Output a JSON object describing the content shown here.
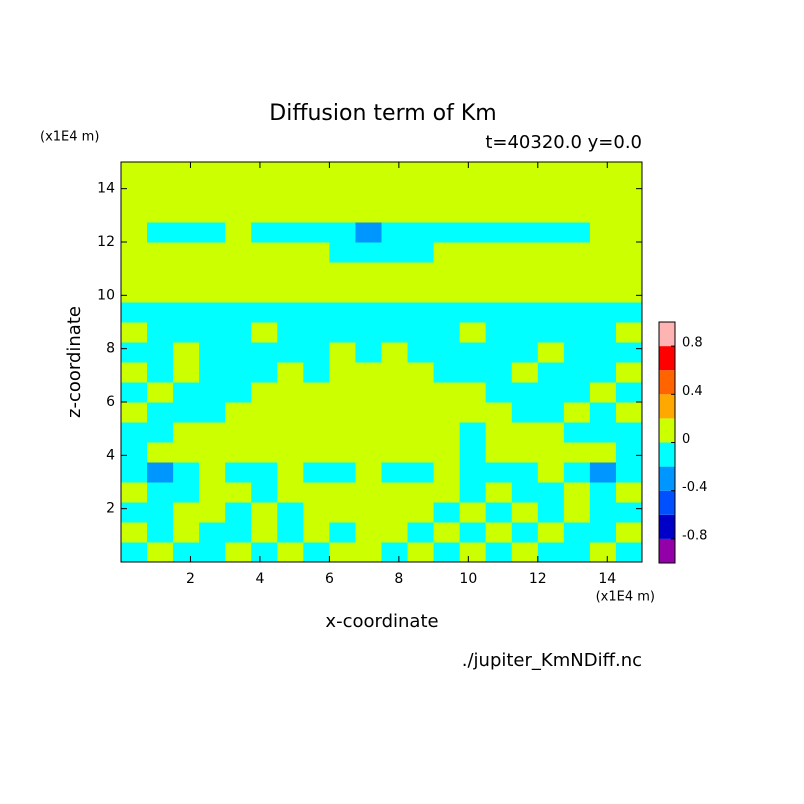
{
  "chart_data": {
    "type": "contour",
    "title": "Diffusion term of Km",
    "subtitle": "t=40320.0 y=0.0",
    "x_label": "x-coordinate",
    "y_label": "z-coordinate",
    "x_unit": "(x1E4 m)",
    "y_unit": "(x1E4 m)",
    "source": "./jupiter_KmNDiff.nc",
    "xlim": [
      0,
      15
    ],
    "ylim": [
      0,
      15
    ],
    "xticks": [
      2,
      4,
      6,
      8,
      10,
      12,
      14
    ],
    "yticks": [
      2,
      4,
      6,
      8,
      10,
      12,
      14
    ],
    "levels": [
      -1,
      -0.8,
      -0.6,
      -0.4,
      -0.2,
      0,
      0.2,
      0.4,
      0.6,
      0.8,
      1
    ],
    "colors": [
      "#9400a8",
      "#0000c8",
      "#0050ff",
      "#0096ff",
      "#00ffff",
      "#ccff00",
      "#ffa800",
      "#ff6400",
      "#ff0000",
      "#ffb4b4"
    ],
    "colorbar_ticks": [
      -0.8,
      -0.4,
      0,
      0.4,
      0.8
    ],
    "z": [
      [
        -0.1,
        0.1,
        -0.1,
        -0.1,
        0.1,
        -0.1,
        0.1,
        -0.1,
        0.1,
        0.1,
        -0.1,
        0.1,
        -0.1,
        0.1,
        -0.1,
        0.1,
        -0.1,
        -0.1,
        0.1,
        -0.1
      ],
      [
        0.1,
        -0.1,
        0.1,
        -0.1,
        -0.1,
        0.1,
        -0.1,
        0.1,
        -0.1,
        0.1,
        0.1,
        -0.1,
        0.1,
        -0.1,
        0.1,
        -0.1,
        0.1,
        -0.1,
        -0.1,
        0.1
      ],
      [
        -0.1,
        -0.1,
        0.1,
        0.1,
        -0.1,
        0.1,
        -0.1,
        0.1,
        0.1,
        0.1,
        0.1,
        0.1,
        -0.1,
        0.1,
        -0.1,
        0.1,
        -0.1,
        0.1,
        -0.1,
        -0.1
      ],
      [
        0.1,
        -0.1,
        -0.1,
        0.1,
        0.1,
        -0.1,
        0.1,
        0.1,
        0.1,
        0.1,
        0.1,
        0.1,
        0.1,
        -0.1,
        0.1,
        -0.1,
        -0.1,
        0.1,
        -0.1,
        0.1
      ],
      [
        -0.1,
        -0.3,
        -0.1,
        0.1,
        -0.1,
        -0.1,
        0.1,
        -0.1,
        -0.1,
        0.1,
        -0.1,
        -0.1,
        0.1,
        -0.1,
        -0.1,
        -0.1,
        0.1,
        -0.1,
        -0.3,
        -0.1
      ],
      [
        -0.1,
        0.1,
        0.1,
        0.1,
        0.1,
        0.1,
        0.1,
        0.1,
        0.1,
        0.1,
        0.1,
        0.1,
        0.1,
        -0.1,
        0.1,
        0.1,
        0.1,
        0.1,
        0.1,
        -0.1
      ],
      [
        -0.1,
        -0.1,
        0.1,
        0.1,
        0.1,
        0.1,
        0.1,
        0.1,
        0.1,
        0.1,
        0.1,
        0.1,
        0.1,
        -0.1,
        0.1,
        0.1,
        0.1,
        -0.1,
        -0.1,
        -0.1
      ],
      [
        0.1,
        -0.1,
        -0.1,
        -0.1,
        0.1,
        0.1,
        0.1,
        0.1,
        0.1,
        0.1,
        0.1,
        0.1,
        0.1,
        0.1,
        0.1,
        -0.1,
        -0.1,
        0.1,
        -0.1,
        0.1
      ],
      [
        -0.1,
        0.1,
        -0.1,
        -0.1,
        -0.1,
        0.1,
        0.1,
        0.1,
        0.1,
        0.1,
        0.1,
        0.1,
        0.1,
        0.1,
        -0.1,
        -0.1,
        -0.1,
        -0.1,
        0.1,
        -0.1
      ],
      [
        0.1,
        -0.1,
        0.1,
        -0.1,
        -0.1,
        -0.1,
        0.1,
        -0.1,
        0.1,
        0.1,
        0.1,
        0.1,
        -0.1,
        -0.1,
        -0.1,
        0.1,
        -0.1,
        -0.1,
        -0.1,
        0.1
      ],
      [
        -0.1,
        -0.1,
        0.1,
        -0.1,
        -0.1,
        -0.1,
        -0.1,
        -0.1,
        0.1,
        -0.1,
        0.1,
        -0.1,
        -0.1,
        -0.1,
        -0.1,
        -0.1,
        0.1,
        -0.1,
        -0.1,
        -0.1
      ],
      [
        0.1,
        -0.1,
        -0.1,
        -0.1,
        -0.1,
        0.1,
        -0.1,
        -0.1,
        -0.1,
        -0.1,
        -0.1,
        -0.1,
        -0.1,
        0.1,
        -0.1,
        -0.1,
        -0.1,
        -0.1,
        -0.1,
        0.1
      ],
      [
        -0.1,
        -0.1,
        -0.1,
        -0.1,
        -0.1,
        -0.1,
        -0.1,
        -0.1,
        -0.1,
        -0.1,
        -0.1,
        -0.1,
        -0.1,
        -0.1,
        -0.1,
        -0.1,
        -0.1,
        -0.1,
        -0.1,
        -0.1
      ],
      [
        0.1,
        0.1,
        0.1,
        0.1,
        0.1,
        0.1,
        0.1,
        0.1,
        0.1,
        0.1,
        0.1,
        0.1,
        0.1,
        0.1,
        0.1,
        0.1,
        0.1,
        0.1,
        0.1,
        0.1
      ],
      [
        0.1,
        0.1,
        0.1,
        0.1,
        0.1,
        0.1,
        0.1,
        0.1,
        0.1,
        0.1,
        0.1,
        0.1,
        0.1,
        0.1,
        0.1,
        0.1,
        0.1,
        0.1,
        0.1,
        0.1
      ],
      [
        0.1,
        0.1,
        0.1,
        0.1,
        0.1,
        0.1,
        0.1,
        0.1,
        -0.1,
        -0.1,
        -0.1,
        -0.1,
        0.1,
        0.1,
        0.1,
        0.1,
        0.1,
        0.1,
        0.1,
        0.1
      ],
      [
        0.1,
        -0.1,
        -0.1,
        -0.1,
        0.1,
        -0.1,
        -0.1,
        -0.1,
        -0.1,
        -0.3,
        -0.1,
        -0.1,
        -0.1,
        -0.1,
        -0.1,
        -0.1,
        -0.1,
        -0.1,
        0.1,
        0.1
      ],
      [
        0.1,
        0.1,
        0.1,
        0.1,
        0.1,
        0.1,
        0.1,
        0.1,
        0.1,
        0.1,
        0.1,
        0.1,
        0.1,
        0.1,
        0.1,
        0.1,
        0.1,
        0.1,
        0.1,
        0.1
      ],
      [
        0.1,
        0.1,
        0.1,
        0.1,
        0.1,
        0.1,
        0.1,
        0.1,
        0.1,
        0.1,
        0.1,
        0.1,
        0.1,
        0.1,
        0.1,
        0.1,
        0.1,
        0.1,
        0.1,
        0.1
      ],
      [
        0.1,
        0.1,
        0.1,
        0.1,
        0.1,
        0.1,
        0.1,
        0.1,
        0.1,
        0.1,
        0.1,
        0.1,
        0.1,
        0.1,
        0.1,
        0.1,
        0.1,
        0.1,
        0.1,
        0.1
      ]
    ]
  }
}
